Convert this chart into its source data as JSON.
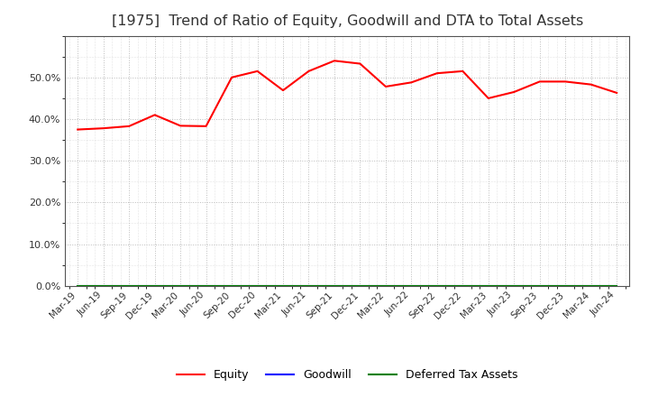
{
  "title": "[1975]  Trend of Ratio of Equity, Goodwill and DTA to Total Assets",
  "x_labels": [
    "Mar-19",
    "Jun-19",
    "Sep-19",
    "Dec-19",
    "Mar-20",
    "Jun-20",
    "Sep-20",
    "Dec-20",
    "Mar-21",
    "Jun-21",
    "Sep-21",
    "Dec-21",
    "Mar-22",
    "Jun-22",
    "Sep-22",
    "Dec-22",
    "Mar-23",
    "Jun-23",
    "Sep-23",
    "Dec-23",
    "Mar-24",
    "Jun-24"
  ],
  "equity": [
    0.375,
    0.378,
    0.383,
    0.41,
    0.384,
    0.383,
    0.5,
    0.515,
    0.469,
    0.515,
    0.54,
    0.533,
    0.478,
    0.488,
    0.51,
    0.515,
    0.45,
    0.465,
    0.49,
    0.49,
    0.483,
    0.463
  ],
  "goodwill": [
    0.0,
    0.0,
    0.0,
    0.0,
    0.0,
    0.0,
    0.0,
    0.0,
    0.0,
    0.0,
    0.0,
    0.0,
    0.0,
    0.0,
    0.0,
    0.0,
    0.0,
    0.0,
    0.0,
    0.0,
    0.0,
    0.0
  ],
  "dta": [
    0.0,
    0.0,
    0.0,
    0.0,
    0.0,
    0.0,
    0.0,
    0.0,
    0.0,
    0.0,
    0.0,
    0.0,
    0.0,
    0.0,
    0.0,
    0.0,
    0.0,
    0.0,
    0.0,
    0.0,
    0.0,
    0.0
  ],
  "equity_color": "#FF0000",
  "goodwill_color": "#0000FF",
  "dta_color": "#008000",
  "ylim": [
    0.0,
    0.6
  ],
  "yticks": [
    0.0,
    0.1,
    0.2,
    0.3,
    0.4,
    0.5
  ],
  "background_color": "#FFFFFF",
  "plot_bg_color": "#FFFFFF",
  "grid_color": "#BBBBBB",
  "title_fontsize": 11.5,
  "legend_labels": [
    "Equity",
    "Goodwill",
    "Deferred Tax Assets"
  ]
}
